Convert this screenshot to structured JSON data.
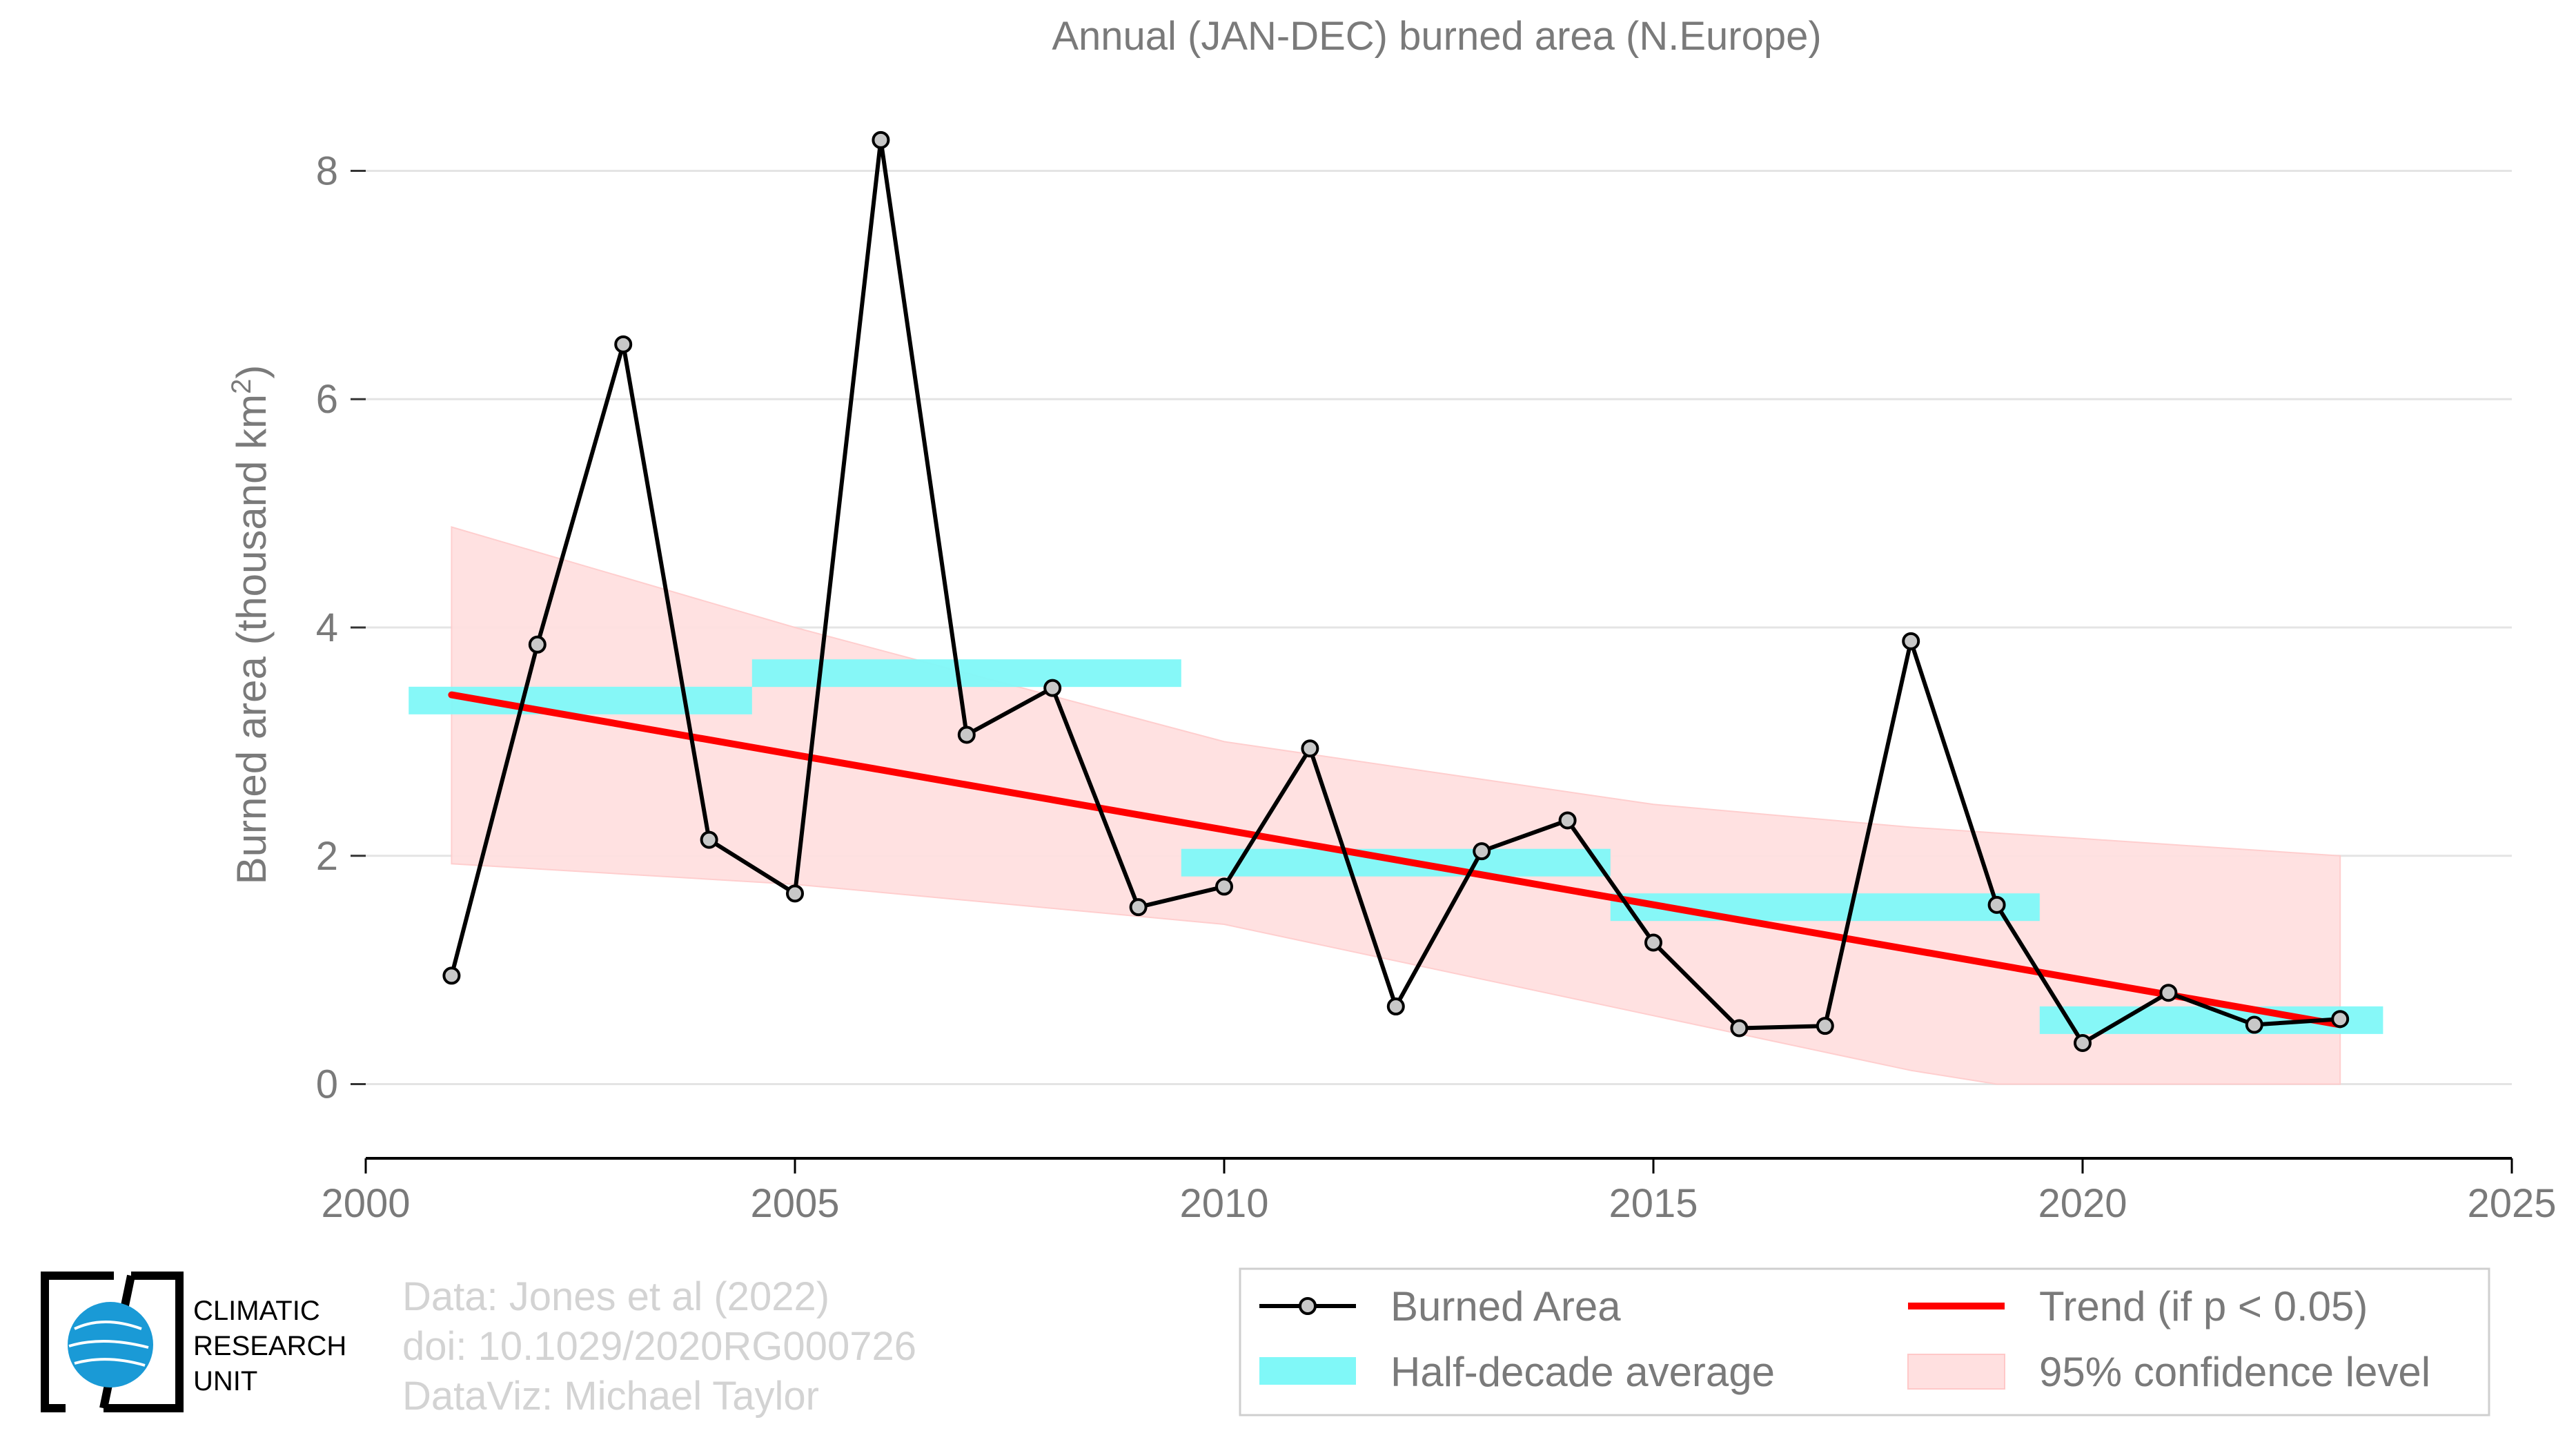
{
  "chart_data": {
    "type": "line",
    "title": "Annual (JAN-DEC) burned area (N.Europe)",
    "ylabel_prefix": "Burned area (thousand km",
    "ylabel_sup": "2",
    "ylabel_suffix": ")",
    "xlim": [
      2000,
      2025
    ],
    "ylim": [
      -0.65,
      8.65
    ],
    "x_ticks": [
      2000,
      2005,
      2010,
      2015,
      2020,
      2025
    ],
    "y_ticks": [
      0,
      2,
      4,
      6,
      8
    ],
    "grid": "horizontal",
    "legend_position": "bottom-right",
    "series": [
      {
        "name": "Burned Area",
        "color": "#000000",
        "marker_color": "#c8c8c8",
        "x": [
          2001,
          2002,
          2003,
          2004,
          2005,
          2006,
          2007,
          2008,
          2009,
          2010,
          2011,
          2012,
          2013,
          2014,
          2015,
          2016,
          2017,
          2018,
          2019,
          2020,
          2021,
          2022,
          2023
        ],
        "y": [
          0.95,
          3.85,
          6.48,
          2.14,
          1.67,
          8.27,
          3.06,
          3.47,
          1.55,
          1.73,
          2.94,
          0.68,
          2.04,
          2.31,
          1.24,
          0.49,
          0.51,
          3.88,
          1.57,
          0.36,
          0.8,
          0.52,
          0.57
        ]
      }
    ],
    "half_decade_average": {
      "name": "Half-decade average",
      "color": "#80f8f8",
      "segments": [
        {
          "x0": 2000.5,
          "x1": 2004.5,
          "y": 3.36
        },
        {
          "x0": 2004.5,
          "x1": 2009.5,
          "y": 3.6
        },
        {
          "x0": 2009.5,
          "x1": 2014.5,
          "y": 1.94
        },
        {
          "x0": 2014.5,
          "x1": 2019.5,
          "y": 1.55
        },
        {
          "x0": 2019.5,
          "x1": 2023.5,
          "y": 0.56
        }
      ]
    },
    "trend": {
      "name": "Trend (if p < 0.05)",
      "color": "#ff0000",
      "x0": 2001,
      "y0": 3.41,
      "x1": 2023,
      "y1": 0.52
    },
    "confidence": {
      "name": "95% confidence level",
      "color": "#ffe0e0",
      "x": [
        2001,
        2005,
        2010,
        2015,
        2018,
        2019,
        2020,
        2023
      ],
      "upper": [
        4.88,
        4.0,
        3.0,
        2.45,
        2.25,
        2.2,
        2.15,
        2.0
      ],
      "lower": [
        1.93,
        1.75,
        1.4,
        0.6,
        0.12,
        0.0,
        0.0,
        0.0
      ]
    }
  },
  "credits": {
    "line1": "Data: Jones et al (2022)",
    "line2": "doi: 10.1029/2020RG000726",
    "line3": "DataViz: Michael Taylor"
  },
  "logo": {
    "line1": "CLIMATIC",
    "line2": "RESEARCH",
    "line3": "UNIT"
  }
}
